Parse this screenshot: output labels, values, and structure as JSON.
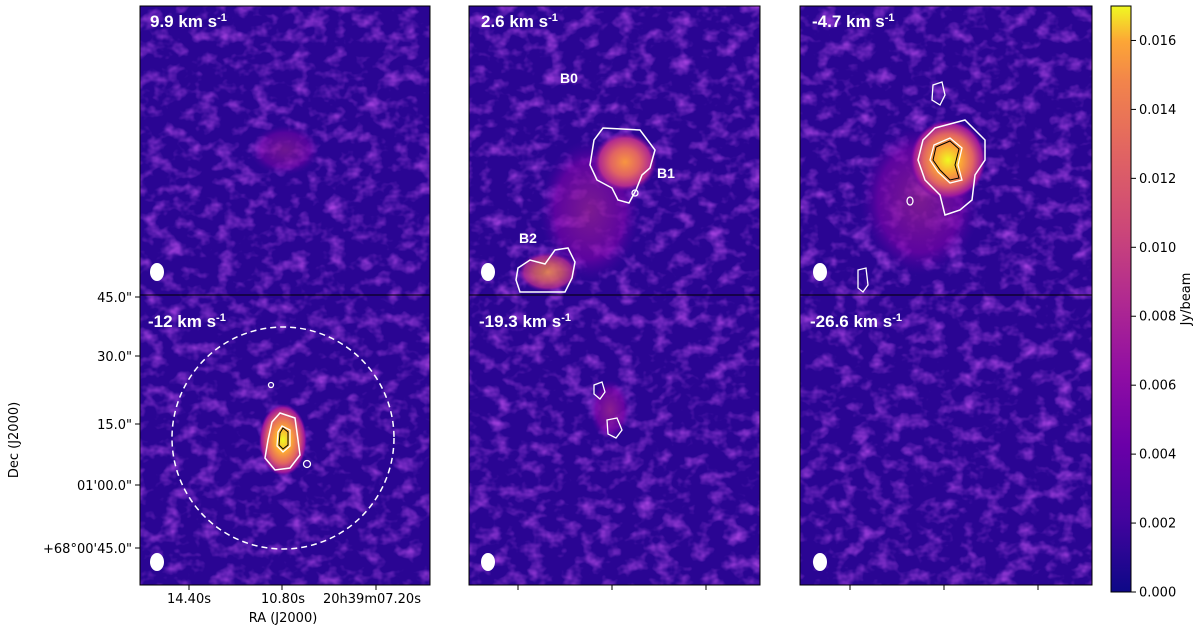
{
  "chart_data": {
    "type": "heatmap",
    "description_of_grid": "2 x 3 channel maps",
    "colormap": "plasma",
    "panels": [
      {
        "id": "p1",
        "velocity_label": "9.9 km s",
        "unit_sup": "-1",
        "sources": [],
        "contours": "none"
      },
      {
        "id": "p2",
        "velocity_label": "2.6 km s",
        "unit_sup": "-1",
        "sources": [
          {
            "name": "B0"
          },
          {
            "name": "B1"
          },
          {
            "name": "B2"
          }
        ],
        "contours": "single"
      },
      {
        "id": "p3",
        "velocity_label": "-4.7 km s",
        "unit_sup": "-1",
        "sources": [],
        "contours": "double"
      },
      {
        "id": "p4",
        "velocity_label": "-12 km s",
        "unit_sup": "-1",
        "sources": [],
        "contours": "double",
        "dashed_circle": true
      },
      {
        "id": "p5",
        "velocity_label": "-19.3 km s",
        "unit_sup": "-1",
        "sources": [],
        "contours": "single"
      },
      {
        "id": "p6",
        "velocity_label": "-26.6 km s",
        "unit_sup": "-1",
        "sources": [],
        "contours": "none"
      }
    ],
    "xlabel": "RA (J2000)",
    "ylabel": "Dec (J2000)",
    "x_ticks": [
      "14.40s",
      "10.80s",
      "20h39m07.20s"
    ],
    "y_ticks": [
      "45.0\"",
      "30.0\"",
      "15.0\"",
      "01'00.0\"",
      "+68°00'45.0\""
    ],
    "colorbar": {
      "label": "Jy/beam",
      "range": [
        0.0,
        0.017
      ],
      "ticks": [
        "0.000",
        "0.002",
        "0.004",
        "0.006",
        "0.008",
        "0.010",
        "0.012",
        "0.014",
        "0.016"
      ],
      "tick_values": [
        0.0,
        0.002,
        0.004,
        0.006,
        0.008,
        0.01,
        0.012,
        0.014,
        0.016
      ]
    },
    "colors": {
      "background": "#2a0593",
      "mid": "#8b0aa5",
      "high": "#f1834b",
      "peak": "#f0f921",
      "contour": "#ffffff"
    }
  }
}
